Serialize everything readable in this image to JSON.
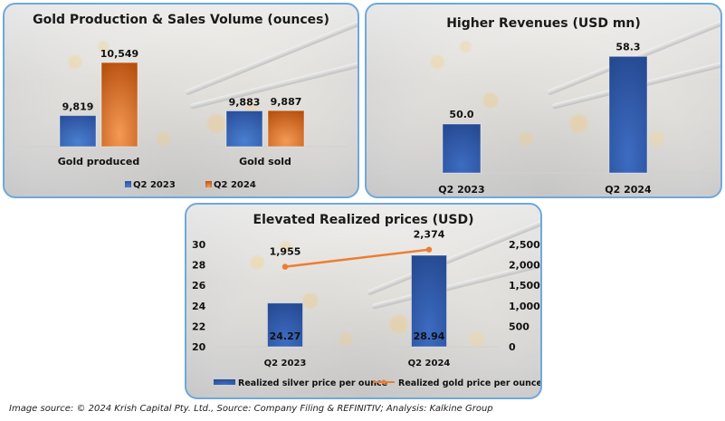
{
  "chart_data": [
    {
      "type": "bar",
      "title": "Gold Production & Sales Volume (ounces)",
      "categories": [
        "Gold produced",
        "Gold sold"
      ],
      "series": [
        {
          "name": "Q2 2023",
          "values": [
            9819,
            9883
          ],
          "labels": [
            "9,819",
            "9,883"
          ],
          "color": "#2f5ba8"
        },
        {
          "name": "Q2 2024",
          "values": [
            10549,
            9887
          ],
          "labels": [
            "10,549",
            "9,887"
          ],
          "color": "#e46c1e"
        }
      ],
      "ylim": [
        9390,
        10600
      ],
      "xlabel": "",
      "ylabel": "",
      "legend": "bottom",
      "grid": false
    },
    {
      "type": "bar",
      "title": "Higher Revenues (USD mn)",
      "categories": [
        "Q2 2023",
        "Q2 2024"
      ],
      "values": [
        50.0,
        58.3
      ],
      "labels": [
        "50.0",
        "58.3"
      ],
      "color": "#2f5ba8",
      "ylim": [
        44,
        59
      ],
      "xlabel": "",
      "ylabel": "",
      "grid": false
    },
    {
      "type": "bar",
      "title": "Elevated Realized prices (USD)",
      "categories": [
        "Q2 2023",
        "Q2 2024"
      ],
      "series": [
        {
          "name": "Realized silver price per ounce",
          "kind": "bar",
          "axis": "left",
          "values": [
            24.27,
            28.94
          ],
          "labels": [
            "24.27",
            "28.94"
          ],
          "color": "#2f5ba8"
        },
        {
          "name": "Realized gold price per ounce",
          "kind": "line",
          "axis": "right",
          "values": [
            1955,
            2374
          ],
          "labels": [
            "1,955",
            "2,374"
          ],
          "color": "#ed7d31"
        }
      ],
      "y_left": {
        "ylim": [
          20,
          30
        ],
        "ticks": [
          "20",
          "22",
          "24",
          "26",
          "28",
          "30"
        ],
        "tick_values": [
          20,
          22,
          24,
          26,
          28,
          30
        ]
      },
      "y_right": {
        "ylim": [
          0,
          2500
        ],
        "ticks": [
          "0",
          "500",
          "1,000",
          "1,500",
          "2,000",
          "2,500"
        ],
        "tick_values": [
          0,
          500,
          1000,
          1500,
          2000,
          2500
        ]
      },
      "legend": "bottom",
      "grid": false
    }
  ],
  "footer": "Image source: © 2024 Krish Capital Pty. Ltd., Source: Company Filing & REFINITIV; Analysis: Kalkine Group"
}
